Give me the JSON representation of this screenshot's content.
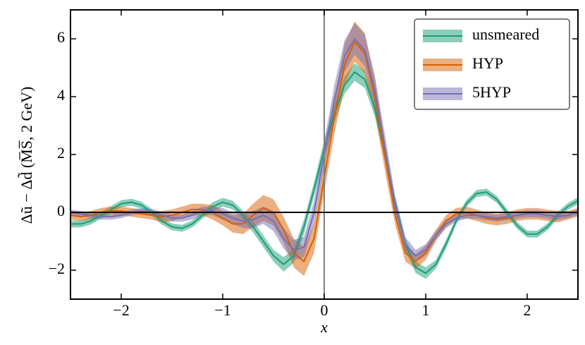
{
  "chart_data": {
    "type": "line",
    "xlabel": "x",
    "ylabel": "Δũ − Δd̃ (M̅S̅, 2 GeV)",
    "x": [
      -2.5,
      -2.4,
      -2.3,
      -2.2,
      -2.1,
      -2.0,
      -1.9,
      -1.8,
      -1.7,
      -1.6,
      -1.5,
      -1.4,
      -1.3,
      -1.2,
      -1.1,
      -1.0,
      -0.9,
      -0.8,
      -0.7,
      -0.6,
      -0.5,
      -0.4,
      -0.3,
      -0.2,
      -0.1,
      0.0,
      0.1,
      0.2,
      0.3,
      0.4,
      0.5,
      0.6,
      0.7,
      0.8,
      0.9,
      1.0,
      1.1,
      1.2,
      1.3,
      1.4,
      1.5,
      1.6,
      1.7,
      1.8,
      1.9,
      2.0,
      2.1,
      2.2,
      2.3,
      2.4,
      2.5
    ],
    "series": [
      {
        "name": "unsmeared",
        "color": "#1b9e77",
        "values": [
          -0.4,
          -0.4,
          -0.3,
          -0.1,
          0.1,
          0.3,
          0.35,
          0.25,
          0.0,
          -0.3,
          -0.5,
          -0.55,
          -0.4,
          -0.1,
          0.2,
          0.35,
          0.25,
          -0.1,
          -0.5,
          -1.0,
          -1.5,
          -1.8,
          -1.5,
          -0.5,
          0.8,
          2.2,
          3.4,
          4.4,
          4.85,
          4.6,
          3.6,
          2.0,
          0.3,
          -1.1,
          -1.9,
          -2.1,
          -1.8,
          -1.1,
          -0.3,
          0.3,
          0.65,
          0.7,
          0.45,
          0.0,
          -0.45,
          -0.75,
          -0.75,
          -0.5,
          -0.1,
          0.2,
          0.4
        ],
        "errors": [
          0.12,
          0.12,
          0.12,
          0.12,
          0.12,
          0.12,
          0.12,
          0.12,
          0.12,
          0.12,
          0.12,
          0.12,
          0.12,
          0.12,
          0.15,
          0.15,
          0.15,
          0.15,
          0.2,
          0.2,
          0.2,
          0.25,
          0.25,
          0.25,
          0.25,
          0.3,
          0.3,
          0.3,
          0.3,
          0.3,
          0.3,
          0.25,
          0.2,
          0.2,
          0.2,
          0.2,
          0.15,
          0.15,
          0.12,
          0.12,
          0.12,
          0.12,
          0.12,
          0.12,
          0.12,
          0.12,
          0.12,
          0.12,
          0.12,
          0.12,
          0.12
        ]
      },
      {
        "name": "HYP",
        "color": "#d95f02",
        "values": [
          -0.1,
          -0.15,
          -0.1,
          0.0,
          0.05,
          0.05,
          0.0,
          -0.05,
          -0.1,
          -0.15,
          -0.1,
          0.0,
          0.1,
          0.1,
          0.0,
          -0.2,
          -0.4,
          -0.4,
          -0.1,
          0.15,
          0.0,
          -0.6,
          -1.4,
          -1.7,
          -0.9,
          1.2,
          3.3,
          5.1,
          5.9,
          5.5,
          4.0,
          1.9,
          -0.1,
          -1.4,
          -1.7,
          -1.4,
          -0.8,
          -0.3,
          -0.05,
          0.0,
          -0.1,
          -0.2,
          -0.25,
          -0.2,
          -0.1,
          -0.05,
          -0.05,
          -0.1,
          -0.15,
          -0.1,
          0.0
        ],
        "errors": [
          0.15,
          0.15,
          0.15,
          0.15,
          0.15,
          0.15,
          0.15,
          0.15,
          0.15,
          0.2,
          0.2,
          0.2,
          0.2,
          0.2,
          0.25,
          0.25,
          0.3,
          0.35,
          0.4,
          0.45,
          0.45,
          0.45,
          0.5,
          0.5,
          0.5,
          0.5,
          0.6,
          0.7,
          0.7,
          0.7,
          0.6,
          0.5,
          0.35,
          0.3,
          0.25,
          0.25,
          0.2,
          0.2,
          0.2,
          0.2,
          0.2,
          0.2,
          0.2,
          0.2,
          0.2,
          0.2,
          0.2,
          0.2,
          0.2,
          0.15,
          0.15
        ]
      },
      {
        "name": "5HYP",
        "color": "#7570b3",
        "values": [
          0.0,
          -0.05,
          -0.1,
          -0.15,
          -0.15,
          -0.1,
          0.0,
          0.05,
          0.0,
          -0.1,
          -0.2,
          -0.2,
          -0.1,
          0.05,
          0.05,
          -0.05,
          -0.2,
          -0.3,
          -0.25,
          -0.1,
          -0.3,
          -0.9,
          -1.3,
          -1.2,
          0.0,
          2.0,
          3.9,
          5.4,
          6.0,
          5.6,
          4.2,
          2.2,
          0.2,
          -1.1,
          -1.5,
          -1.3,
          -0.8,
          -0.4,
          -0.2,
          -0.1,
          -0.1,
          -0.15,
          -0.2,
          -0.15,
          -0.1,
          -0.05,
          -0.05,
          -0.1,
          -0.15,
          -0.1,
          0.0
        ],
        "errors": [
          0.1,
          0.1,
          0.1,
          0.1,
          0.1,
          0.1,
          0.1,
          0.1,
          0.12,
          0.12,
          0.12,
          0.12,
          0.15,
          0.15,
          0.15,
          0.2,
          0.2,
          0.25,
          0.3,
          0.3,
          0.35,
          0.35,
          0.35,
          0.35,
          0.4,
          0.45,
          0.5,
          0.55,
          0.55,
          0.55,
          0.5,
          0.45,
          0.35,
          0.25,
          0.2,
          0.2,
          0.15,
          0.15,
          0.12,
          0.12,
          0.12,
          0.12,
          0.12,
          0.12,
          0.12,
          0.12,
          0.12,
          0.12,
          0.12,
          0.1,
          0.1
        ]
      }
    ],
    "xlim": [
      -2.5,
      2.5
    ],
    "ylim": [
      -3,
      7
    ],
    "xticks": [
      {
        "value": -2,
        "label": "−2"
      },
      {
        "value": -1,
        "label": "−1"
      },
      0,
      1,
      2
    ],
    "yticks": [
      {
        "value": -2,
        "label": "−2"
      },
      0,
      2,
      4,
      6
    ],
    "axhline": 0,
    "axvline": 0,
    "legend": "upper right"
  }
}
